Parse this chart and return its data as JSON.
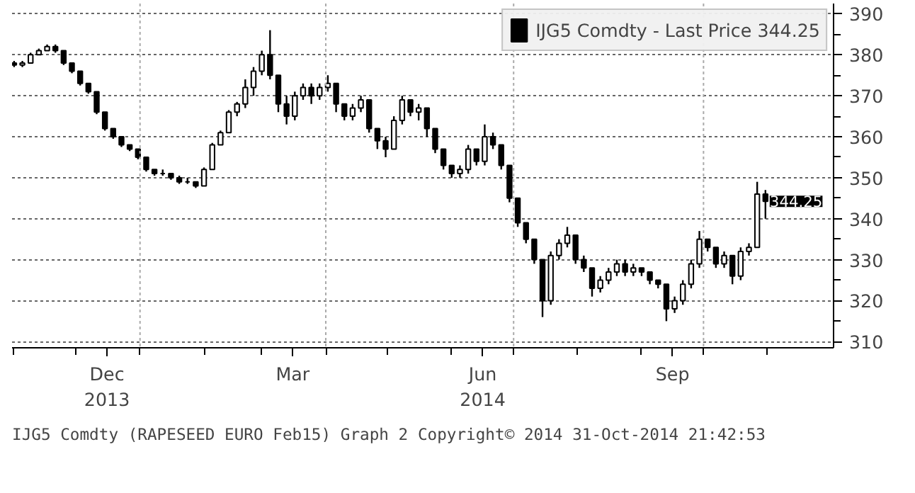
{
  "chart_data": {
    "type": "candlestick",
    "x": [
      "2013-11-01",
      "2013-11-05",
      "2013-11-09",
      "2013-11-13",
      "2013-11-17",
      "2013-11-21",
      "2013-11-25",
      "2013-11-29",
      "2013-12-03",
      "2013-12-07",
      "2013-12-11",
      "2013-12-15",
      "2013-12-19",
      "2013-12-23",
      "2013-12-27",
      "2013-12-31",
      "2014-01-04",
      "2014-01-08",
      "2014-01-12",
      "2014-01-16",
      "2014-01-20",
      "2014-01-24",
      "2014-01-28",
      "2014-02-01",
      "2014-02-05",
      "2014-02-09",
      "2014-02-13",
      "2014-02-17",
      "2014-02-21",
      "2014-02-25",
      "2014-03-01",
      "2014-03-05",
      "2014-03-09",
      "2014-03-13",
      "2014-03-17",
      "2014-03-21",
      "2014-03-25",
      "2014-03-29",
      "2014-04-02",
      "2014-04-06",
      "2014-04-10",
      "2014-04-14",
      "2014-04-18",
      "2014-04-22",
      "2014-04-26",
      "2014-04-30",
      "2014-05-04",
      "2014-05-08",
      "2014-05-12",
      "2014-05-16",
      "2014-05-20",
      "2014-05-24",
      "2014-05-28",
      "2014-06-01",
      "2014-06-05",
      "2014-06-09",
      "2014-06-13",
      "2014-06-17",
      "2014-06-21",
      "2014-06-25",
      "2014-06-29",
      "2014-07-03",
      "2014-07-07",
      "2014-07-11",
      "2014-07-15",
      "2014-07-19",
      "2014-07-23",
      "2014-07-27",
      "2014-07-31",
      "2014-08-04",
      "2014-08-08",
      "2014-08-12",
      "2014-08-16",
      "2014-08-20",
      "2014-08-24",
      "2014-08-28",
      "2014-09-01",
      "2014-09-05",
      "2014-09-09",
      "2014-09-13",
      "2014-09-17",
      "2014-09-21",
      "2014-09-25",
      "2014-09-29",
      "2014-10-03",
      "2014-10-07",
      "2014-10-11",
      "2014-10-15",
      "2014-10-19",
      "2014-10-23",
      "2014-10-27",
      "2014-10-31"
    ],
    "series": [
      {
        "name": "IJG5 Comdty - Last Price 344.25",
        "color": "#000000",
        "ohlc": [
          [
            378,
            378.5,
            377,
            377.5
          ],
          [
            377.5,
            378.5,
            377,
            378
          ],
          [
            378,
            380.5,
            378,
            380
          ],
          [
            380,
            381.5,
            380,
            381
          ],
          [
            381,
            382.5,
            381,
            382
          ],
          [
            382,
            382.5,
            380.5,
            381
          ],
          [
            381,
            381,
            377.5,
            378
          ],
          [
            378,
            378,
            375.5,
            376
          ],
          [
            376,
            376,
            372.5,
            373
          ],
          [
            373,
            373,
            370.5,
            371
          ],
          [
            371,
            371,
            365.5,
            366
          ],
          [
            366,
            366,
            361.5,
            362
          ],
          [
            362,
            362,
            359.5,
            360
          ],
          [
            360,
            360,
            357.5,
            358
          ],
          [
            358,
            358,
            356.5,
            357
          ],
          [
            357,
            357,
            354.5,
            355
          ],
          [
            355,
            355,
            351.5,
            352
          ],
          [
            352,
            352,
            350.5,
            351
          ],
          [
            351,
            352,
            350.5,
            351
          ],
          [
            351,
            351,
            349.5,
            350
          ],
          [
            350,
            350.5,
            348.5,
            349
          ],
          [
            349,
            350,
            348.5,
            349
          ],
          [
            349,
            349,
            347.5,
            348
          ],
          [
            348,
            352.5,
            348,
            352
          ],
          [
            352,
            358.5,
            352,
            358
          ],
          [
            358,
            361.5,
            358,
            361
          ],
          [
            361,
            366.5,
            361,
            366
          ],
          [
            366,
            368.5,
            365,
            368
          ],
          [
            368,
            374,
            367,
            372
          ],
          [
            372,
            377,
            370,
            376
          ],
          [
            376,
            381,
            375,
            380
          ],
          [
            380,
            386,
            374,
            375
          ],
          [
            375,
            375,
            366,
            368
          ],
          [
            368,
            370,
            363,
            365
          ],
          [
            365,
            371,
            364,
            370
          ],
          [
            370,
            373,
            369,
            372
          ],
          [
            372,
            373,
            368,
            370
          ],
          [
            370,
            373,
            369,
            372
          ],
          [
            372,
            375,
            371,
            373
          ],
          [
            373,
            373,
            366,
            368
          ],
          [
            368,
            368,
            364,
            365
          ],
          [
            365,
            368,
            364,
            367
          ],
          [
            367,
            370,
            366,
            369
          ],
          [
            369,
            369,
            361,
            362
          ],
          [
            362,
            362,
            357,
            359
          ],
          [
            359,
            360,
            355,
            357
          ],
          [
            357,
            365,
            357,
            364
          ],
          [
            364,
            370,
            363,
            369
          ],
          [
            369,
            369,
            365,
            366
          ],
          [
            366,
            368,
            364,
            367
          ],
          [
            367,
            367,
            360,
            362
          ],
          [
            362,
            362,
            356,
            357
          ],
          [
            357,
            357,
            352,
            353
          ],
          [
            353,
            353,
            350,
            351
          ],
          [
            351,
            353,
            350,
            352
          ],
          [
            352,
            358,
            351,
            357
          ],
          [
            357,
            357,
            353,
            354
          ],
          [
            354,
            363,
            353,
            360
          ],
          [
            360,
            361,
            357,
            358
          ],
          [
            358,
            358,
            352,
            353
          ],
          [
            353,
            353,
            344,
            345
          ],
          [
            345,
            345,
            338,
            339
          ],
          [
            339,
            339,
            334,
            335
          ],
          [
            335,
            335,
            329,
            330
          ],
          [
            330,
            330,
            316,
            320
          ],
          [
            320,
            332,
            319,
            331
          ],
          [
            331,
            335,
            330,
            334
          ],
          [
            334,
            338,
            333,
            336
          ],
          [
            336,
            336,
            329,
            330
          ],
          [
            330,
            331,
            327,
            328
          ],
          [
            328,
            328,
            321,
            323
          ],
          [
            323,
            326,
            322,
            325
          ],
          [
            325,
            328,
            324,
            327
          ],
          [
            327,
            330,
            326,
            329
          ],
          [
            329,
            330,
            326,
            327
          ],
          [
            327,
            329,
            326,
            328
          ],
          [
            328,
            328,
            326,
            327
          ],
          [
            327,
            327,
            324,
            325
          ],
          [
            325,
            325,
            323,
            324
          ],
          [
            324,
            324,
            315,
            318
          ],
          [
            318,
            321,
            317,
            320
          ],
          [
            320,
            325,
            319,
            324
          ],
          [
            324,
            330,
            323,
            329
          ],
          [
            329,
            337,
            328,
            335
          ],
          [
            335,
            335,
            332,
            333
          ],
          [
            333,
            333,
            328,
            329
          ],
          [
            329,
            332,
            328,
            331
          ],
          [
            331,
            331,
            324,
            326
          ],
          [
            326,
            333,
            325,
            332
          ],
          [
            332,
            334,
            331,
            333
          ],
          [
            333,
            349,
            333,
            346
          ],
          [
            346,
            347,
            340,
            344.25
          ]
        ]
      }
    ],
    "xlim": [
      "2013-10-31",
      "2014-12-03"
    ],
    "xticks": [
      {
        "value": "2013-11-01",
        "label": null
      },
      {
        "value": "2013-12-01",
        "label": null
      },
      {
        "value": "2014-01-01",
        "label": null
      },
      {
        "value": "2014-02-01",
        "label": null
      },
      {
        "value": "2014-03-01",
        "label": null
      },
      {
        "value": "2014-04-01",
        "label": null
      },
      {
        "value": "2014-05-01",
        "label": null
      },
      {
        "value": "2014-06-01",
        "label": null
      },
      {
        "value": "2014-07-01",
        "label": null
      },
      {
        "value": "2014-08-01",
        "label": null
      },
      {
        "value": "2014-09-01",
        "label": null
      },
      {
        "value": "2014-10-01",
        "label": null
      },
      {
        "value": "2014-11-01",
        "label": null
      },
      {
        "value": "2013-12-16",
        "label": "Dec\n2013"
      },
      {
        "value": "2014-03-16",
        "label": "Mar"
      },
      {
        "value": "2014-06-16",
        "label": "Jun\n2014"
      },
      {
        "value": "2014-09-16",
        "label": "Sep"
      }
    ],
    "ylim": [
      308.5,
      392.5
    ],
    "yticks": [
      310,
      {
        "value": 315,
        "label": null
      },
      320,
      {
        "value": 325,
        "label": null
      },
      330,
      {
        "value": 335,
        "label": null
      },
      340,
      {
        "value": 345,
        "label": null
      },
      350,
      {
        "value": 355,
        "label": null
      },
      360,
      {
        "value": 365,
        "label": null
      },
      370,
      {
        "value": 375,
        "label": null
      },
      380,
      {
        "value": 385,
        "label": null
      },
      390
    ],
    "grid": "y",
    "ref_lines": [
      {
        "axis": "x",
        "value": "2014-01-01",
        "color": "#aaaaaa",
        "line_style": "dotted"
      },
      {
        "axis": "x",
        "value": "2014-04-01",
        "color": "#aaaaaa",
        "line_style": "dotted"
      },
      {
        "axis": "x",
        "value": "2014-07-01",
        "color": "#aaaaaa",
        "line_style": "dotted"
      },
      {
        "axis": "x",
        "value": "2014-10-01",
        "color": "#aaaaaa",
        "line_style": "dotted"
      }
    ],
    "legend": "top right",
    "annotations": [
      {
        "text": "344.25",
        "x": "2014-10-31",
        "y": 344.25
      },
      "IJG5 Comdty (RAPESEED  EURO   Feb15) Graph 2   Copyright© 2014   31-Oct-2014 21:42:53"
    ]
  }
}
